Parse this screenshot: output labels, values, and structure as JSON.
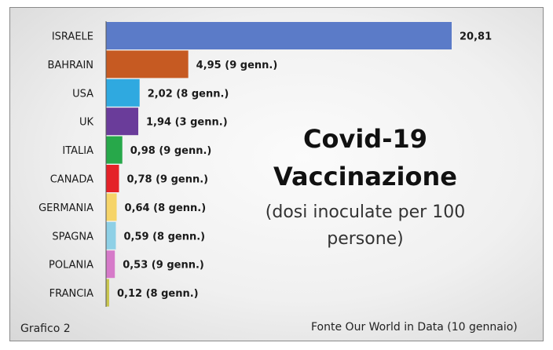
{
  "title_line1": "Covid-19",
  "title_line2": "Vaccinazione",
  "subtitle_line1": "(dosi inoculate per 100",
  "subtitle_line2": "persone)",
  "footer_left": "Grafico 2",
  "footer_right": "Fonte Our World in Data (10 gennaio)",
  "chart_data": {
    "type": "bar",
    "orientation": "horizontal",
    "categories": [
      "ISRAELE",
      "BAHRAIN",
      "USA",
      "UK",
      "ITALIA",
      "CANADA",
      "GERMANIA",
      "SPAGNA",
      "POLANIA",
      "FRANCIA"
    ],
    "values": [
      20.81,
      4.95,
      2.02,
      1.94,
      0.98,
      0.78,
      0.64,
      0.59,
      0.53,
      0.12
    ],
    "data_labels": [
      "20,81",
      "4,95 (9 genn.)",
      "2,02 (8 genn.)",
      "1,94 (3 genn.)",
      "0,98 (9 genn.)",
      "0,78 (9 genn.)",
      "0,64 (8 genn.)",
      "0,59 (8 genn.)",
      "0,53 (9 genn.)",
      "0,12 (8 genn.)"
    ],
    "colors": [
      "#5b7bc8",
      "#c65a22",
      "#2fa9e0",
      "#6a3c9a",
      "#27a84a",
      "#e42228",
      "#f6d468",
      "#8ed0e6",
      "#d67ac9",
      "#c9c64f"
    ],
    "xlim": [
      0,
      21
    ],
    "grid": false,
    "legend": "none"
  }
}
